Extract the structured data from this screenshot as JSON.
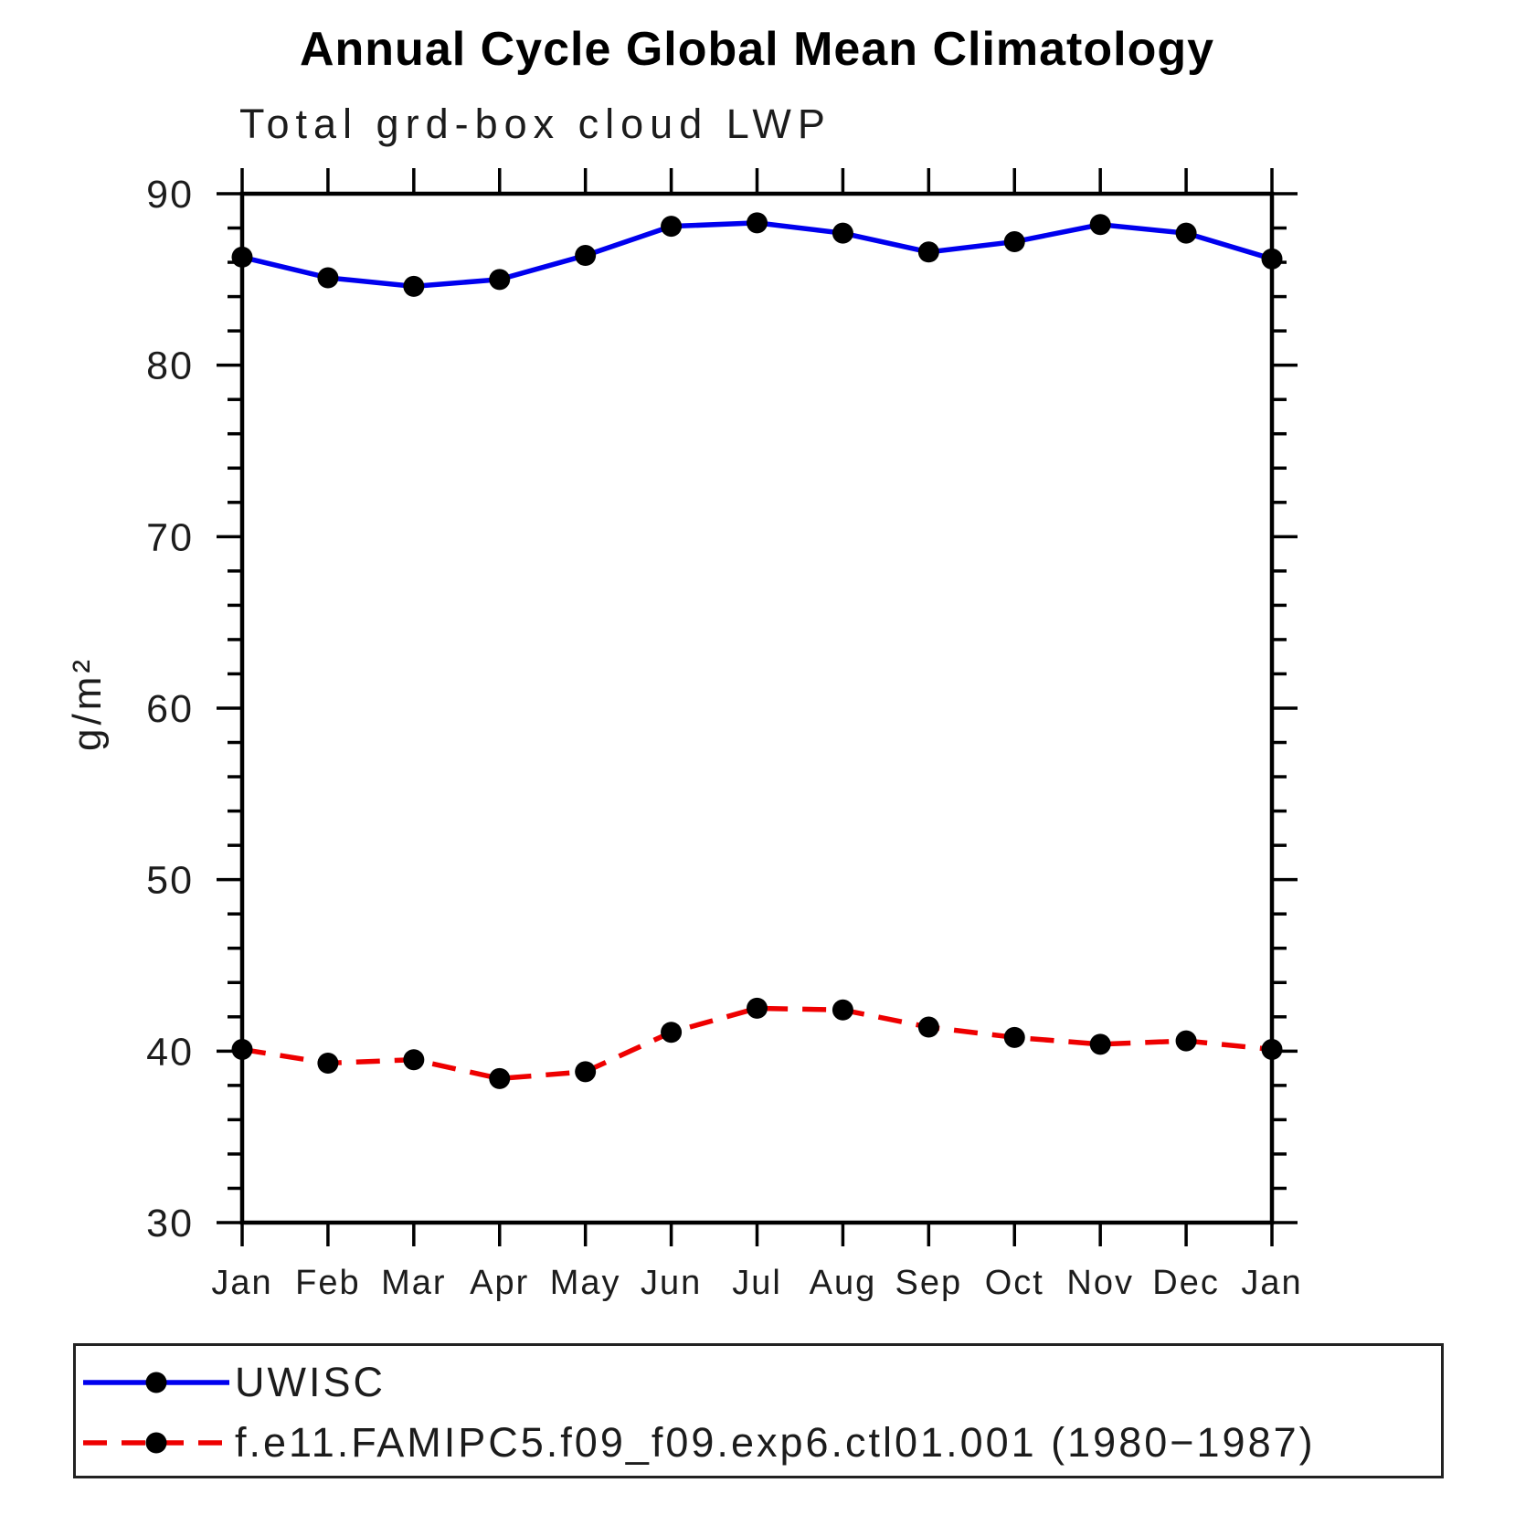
{
  "page": {
    "title": "Annual Cycle Global Mean Climatology",
    "subtitle": "Total grd-box cloud LWP"
  },
  "legend": {
    "items": [
      {
        "label": "UWISC",
        "color": "#0000ee",
        "line_style": "solid",
        "marker_color": "#000000"
      },
      {
        "label": "f.e11.FAMIPC5.f09_f09.exp6.ctl01.001 (1980−1987)",
        "color": "#ee0000",
        "line_style": "dashed",
        "marker_color": "#000000"
      }
    ]
  },
  "chart_data": {
    "type": "line",
    "title": "Annual Cycle Global Mean Climatology",
    "subtitle": "Total grd-box cloud LWP",
    "xlabel": "",
    "ylabel": "g/m²",
    "categories": [
      "Jan",
      "Feb",
      "Mar",
      "Apr",
      "May",
      "Jun",
      "Jul",
      "Aug",
      "Sep",
      "Oct",
      "Nov",
      "Dec",
      "Jan"
    ],
    "series": [
      {
        "name": "UWISC",
        "color": "#0000ee",
        "line_style": "solid",
        "marker": "filled-circle",
        "marker_color": "#000000",
        "values": [
          86.3,
          85.1,
          84.6,
          85.0,
          86.4,
          88.1,
          88.3,
          87.7,
          86.6,
          87.2,
          88.2,
          87.7,
          86.2
        ]
      },
      {
        "name": "f.e11.FAMIPC5.f09_f09.exp6.ctl01.001 (1980−1987)",
        "color": "#ee0000",
        "line_style": "dashed",
        "marker": "filled-circle",
        "marker_color": "#000000",
        "values": [
          40.1,
          39.3,
          39.5,
          38.4,
          38.8,
          41.1,
          42.5,
          42.4,
          41.4,
          40.8,
          40.4,
          40.6,
          40.1
        ]
      }
    ],
    "ylim": [
      30,
      90
    ],
    "ytick_major_step": 10,
    "ytick_minor_step": 2,
    "ytick_labels": [
      "30",
      "40",
      "50",
      "60",
      "70",
      "80",
      "90"
    ],
    "grid": false,
    "legend_position": "bottom-left-box"
  }
}
